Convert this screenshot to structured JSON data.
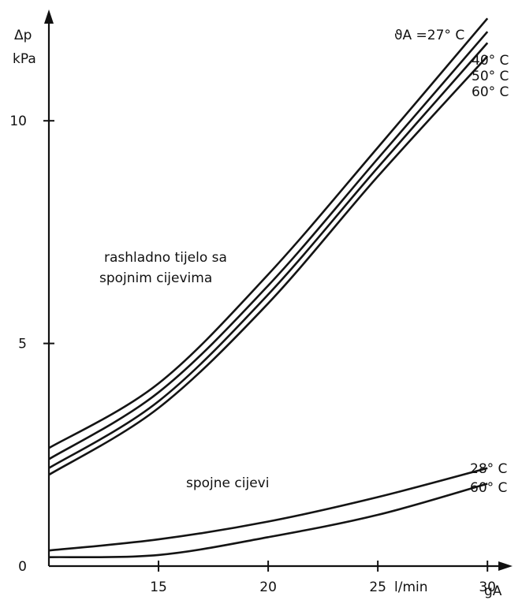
{
  "chart_data": {
    "type": "line",
    "x_axis": {
      "label": "l/min",
      "symbol": "gA",
      "ticks": [
        15,
        20,
        25,
        30
      ],
      "range": [
        10,
        31
      ]
    },
    "y_axis": {
      "label_symbol": "Δp",
      "label_unit": "kPa",
      "ticks": [
        0,
        5,
        10
      ],
      "range": [
        0,
        12.5
      ]
    },
    "grid": false,
    "groups": [
      {
        "label_lines": [
          "rashladno tijelo sa",
          "spojnim cijevima"
        ],
        "series": [
          {
            "name": "ϑA =27° C",
            "x": [
              10,
              15,
              20,
              25,
              30
            ],
            "y": [
              2.65,
              4.1,
              6.55,
              9.4,
              12.3
            ]
          },
          {
            "name": "40° C",
            "x": [
              10,
              15,
              20,
              25,
              30
            ],
            "y": [
              2.4,
              3.9,
              6.3,
              9.15,
              12.0
            ]
          },
          {
            "name": "50° C",
            "x": [
              10,
              15,
              20,
              25,
              30
            ],
            "y": [
              2.2,
              3.7,
              6.1,
              8.95,
              11.75
            ]
          },
          {
            "name": "60° C",
            "x": [
              10,
              15,
              20,
              25,
              30
            ],
            "y": [
              2.05,
              3.55,
              5.9,
              8.75,
              11.45
            ]
          }
        ]
      },
      {
        "label_lines": [
          "spojne cijevi"
        ],
        "series": [
          {
            "name": "28° C",
            "x": [
              10,
              15,
              20,
              25,
              30
            ],
            "y": [
              0.35,
              0.6,
              1.0,
              1.55,
              2.2
            ]
          },
          {
            "name": "60° C",
            "x": [
              10,
              15,
              20,
              25,
              30
            ],
            "y": [
              0.2,
              0.25,
              0.65,
              1.15,
              1.85
            ]
          }
        ]
      }
    ]
  }
}
